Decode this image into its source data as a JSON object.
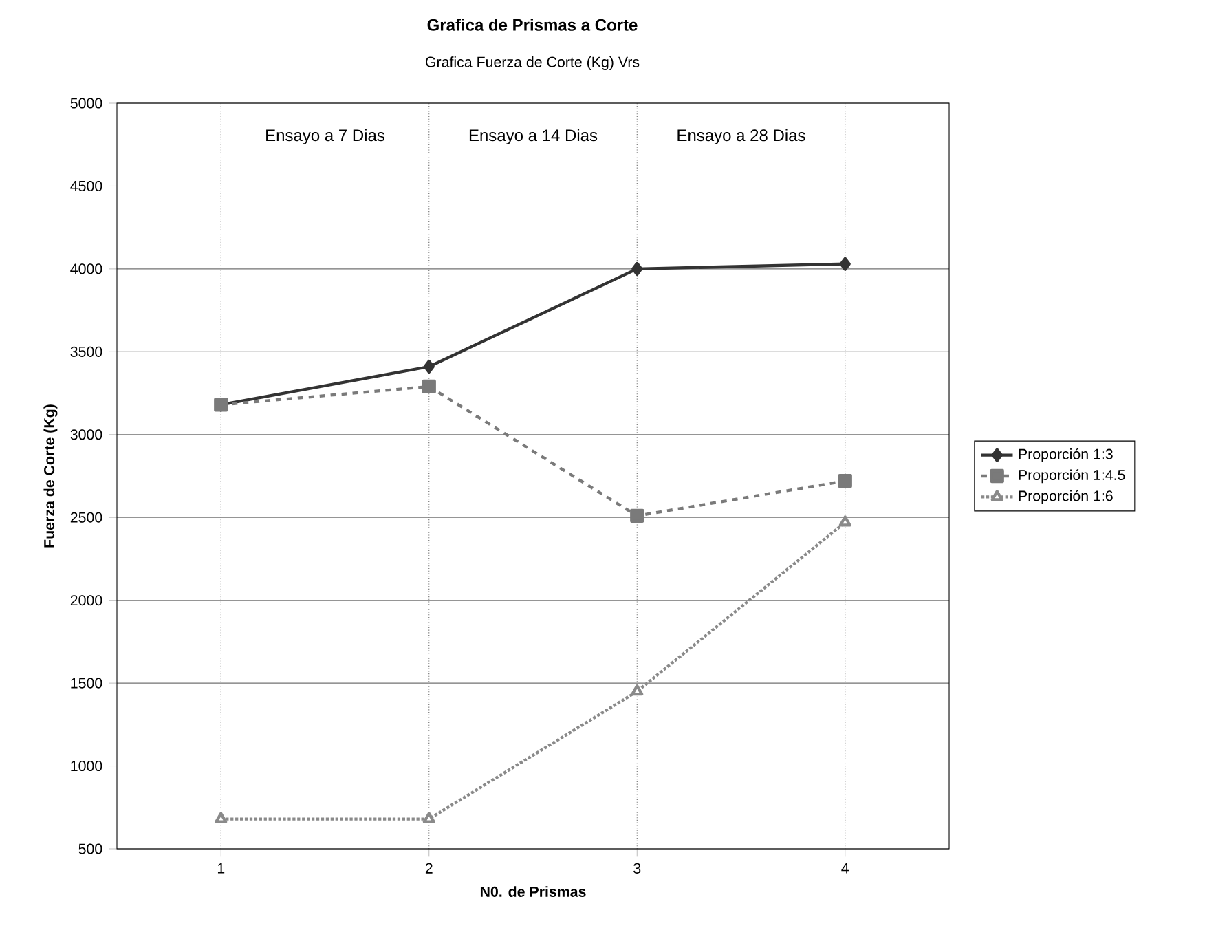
{
  "chart_data": {
    "type": "line",
    "title": "Grafica de Prismas a Corte",
    "subtitle": "Grafica Fuerza de Corte (Kg) Vrs",
    "xlabel": "N0. de Prismas",
    "ylabel": "Fuerza de Corte (Kg)",
    "x": [
      1,
      2,
      3,
      4
    ],
    "xlim": [
      0.5,
      4.5
    ],
    "xticks": [
      1,
      2,
      3,
      4
    ],
    "ylim": [
      500,
      5000
    ],
    "yticks": [
      500,
      1000,
      1500,
      2000,
      2500,
      3000,
      3500,
      4000,
      4500,
      5000
    ],
    "series": [
      {
        "name": "Proporción 1:3",
        "color": "#333333",
        "marker": "diamond",
        "line_style": "solid",
        "values": [
          3180,
          3410,
          4000,
          4030
        ]
      },
      {
        "name": "Proporción 1:4.5",
        "color": "#7a7a7a",
        "marker": "square",
        "line_style": "dashed",
        "values": [
          3180,
          3290,
          2510,
          2720
        ]
      },
      {
        "name": "Proporción 1:6",
        "color": "#8a8a8a",
        "marker": "triangle",
        "line_style": "dotted",
        "values": [
          680,
          680,
          1450,
          2470
        ]
      }
    ],
    "annotations": [
      "Ensayo a 7 Dias",
      "Ensayo a 14 Dias",
      "Ensayo a 28 Dias"
    ],
    "grid": true,
    "legend": "right"
  }
}
